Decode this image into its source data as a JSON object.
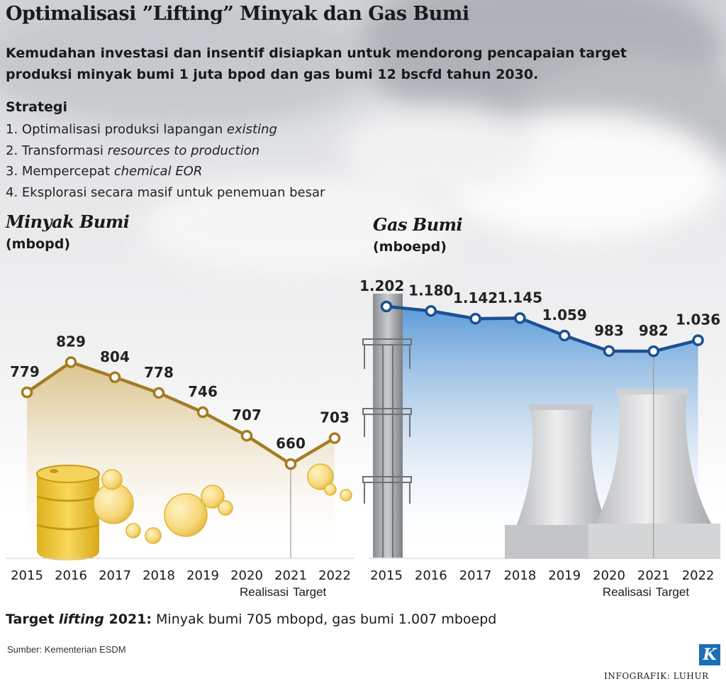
{
  "title": "Optimalisasi ”Lifting” Minyak dan Gas Bumi",
  "intro": "Kemudahan investasi dan insentif disiapkan untuk mendorong pencapaian target produksi minyak bumi 1 juta bpod dan gas bumi 12 bscfd tahun 2030.",
  "strategy": {
    "heading": "Strategi",
    "items": [
      {
        "text": "1. Optimalisasi produksi lapangan ",
        "em": "existing"
      },
      {
        "text": "2. Transformasi ",
        "em": "resources to production"
      },
      {
        "text": "3. Mempercepat ",
        "em": "chemical EOR"
      },
      {
        "text": "4. Eksplorasi secara masif untuk penemuan besar",
        "em": ""
      }
    ]
  },
  "colors": {
    "oil_line": "#a57c23",
    "oil_fill_top": "#dcc48a",
    "gas_line": "#1c4f93",
    "gas_fill_top": "#5b9bd8",
    "barrel": "#f1c93d",
    "bubble": "#f6d77a"
  },
  "chart_data": [
    {
      "type": "area",
      "title": "Minyak Bumi",
      "unit": "(mbopd)",
      "x": [
        "2015",
        "2016",
        "2017",
        "2018",
        "2019",
        "2020",
        "2021",
        "2022"
      ],
      "values": [
        779,
        829,
        804,
        778,
        746,
        707,
        660,
        703
      ],
      "labels": [
        "779",
        "829",
        "804",
        "778",
        "746",
        "707",
        "660",
        "703"
      ],
      "divider_after": "2021",
      "notes": {
        "left": "Realisasi",
        "right": "Target"
      },
      "grid": false
    },
    {
      "type": "area",
      "title": "Gas Bumi",
      "unit": "(mboepd)",
      "x": [
        "2015",
        "2016",
        "2017",
        "2018",
        "2019",
        "2020",
        "2021",
        "2022"
      ],
      "values": [
        1202,
        1180,
        1142,
        1145,
        1059,
        983,
        982,
        1036
      ],
      "labels": [
        "1.202",
        "1.180",
        "1.142",
        "1.145",
        "1.059",
        "983",
        "982",
        "1.036"
      ],
      "divider_after": "2021",
      "notes": {
        "left": "Realisasi",
        "right": "Target"
      },
      "grid": false
    }
  ],
  "target": {
    "prefix": "Target ",
    "em": "lifting",
    "year": " 2021:",
    "text": " Minyak bumi 705 mbopd, gas bumi 1.007 mboepd"
  },
  "source": "Sumber: Kementerian ESDM",
  "logo": "K",
  "credit": "INFOGRAFIK: LUHUR"
}
